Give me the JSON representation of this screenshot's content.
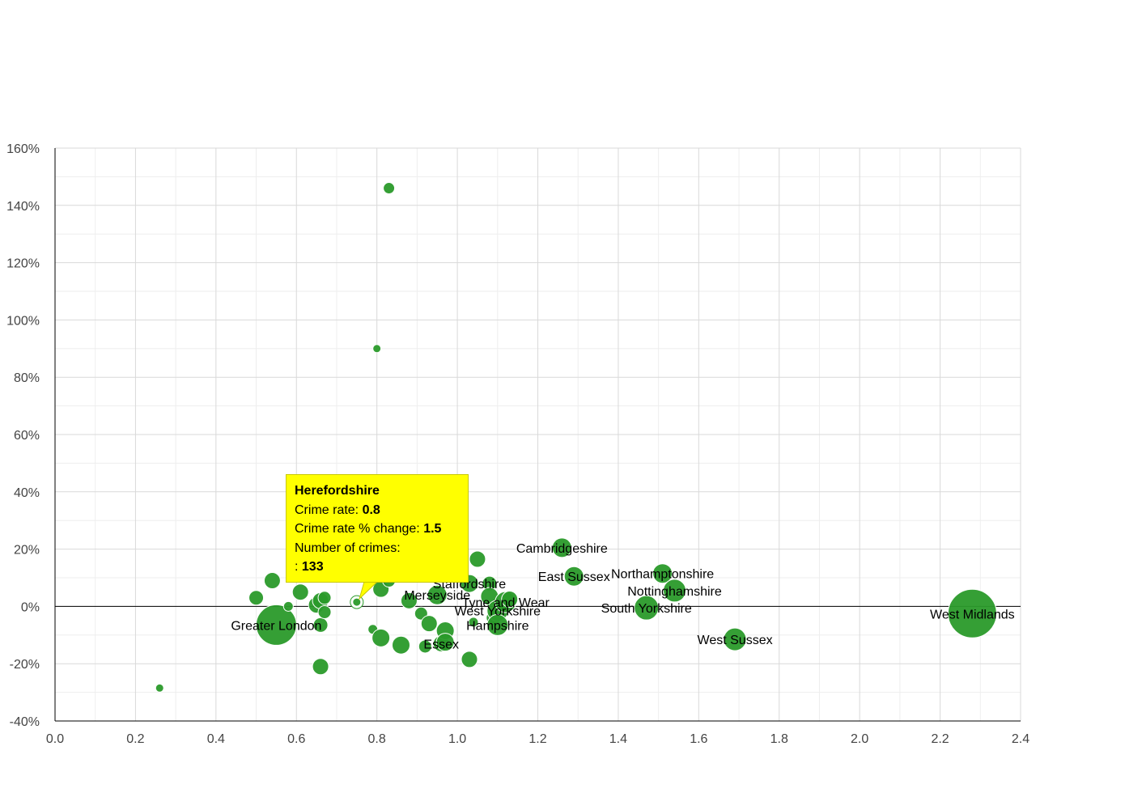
{
  "colors": {
    "bubble": "#2a9a2a",
    "bubble_stroke": "#ffffff",
    "grid": "#d9d9d9",
    "minor_grid": "#eeeeee",
    "tooltip_bg": "#ffff00",
    "axis": "#000000"
  },
  "chart_data": {
    "type": "scatter",
    "subtype": "bubble",
    "xlim": [
      0.0,
      2.4
    ],
    "ylim": [
      -40,
      160
    ],
    "x_ticks": [
      "0.0",
      "0.2",
      "0.4",
      "0.6",
      "0.8",
      "1.0",
      "1.2",
      "1.4",
      "1.6",
      "1.8",
      "2.0",
      "2.2",
      "2.4"
    ],
    "y_ticks": [
      "160%",
      "140%",
      "120%",
      "100%",
      "80%",
      "60%",
      "40%",
      "20%",
      "0%",
      "-20%",
      "-40%"
    ],
    "xlabel": "",
    "ylabel": "",
    "grid": true,
    "points": [
      {
        "x": 0.26,
        "y": -28.5,
        "size": 5
      },
      {
        "x": 0.5,
        "y": 3,
        "size": 9
      },
      {
        "x": 0.54,
        "y": 9,
        "size": 10
      },
      {
        "x": 0.55,
        "y": -6.5,
        "size": 25,
        "label": "Greater London"
      },
      {
        "x": 0.58,
        "y": 0,
        "size": 6
      },
      {
        "x": 0.61,
        "y": 5,
        "size": 10
      },
      {
        "x": 0.65,
        "y": 0.5,
        "size": 10
      },
      {
        "x": 0.66,
        "y": 2,
        "size": 10
      },
      {
        "x": 0.66,
        "y": -6.5,
        "size": 9
      },
      {
        "x": 0.66,
        "y": -21,
        "size": 10
      },
      {
        "x": 0.67,
        "y": 3,
        "size": 8
      },
      {
        "x": 0.67,
        "y": -2,
        "size": 8
      },
      {
        "x": 0.75,
        "y": 1.5,
        "size": 5,
        "label": "Herefordshire",
        "highlight": true
      },
      {
        "x": 0.79,
        "y": -8,
        "size": 6
      },
      {
        "x": 0.8,
        "y": 90,
        "size": 5
      },
      {
        "x": 0.81,
        "y": 6,
        "size": 10
      },
      {
        "x": 0.81,
        "y": -11,
        "size": 11
      },
      {
        "x": 0.83,
        "y": 146,
        "size": 7
      },
      {
        "x": 0.83,
        "y": 9,
        "size": 8
      },
      {
        "x": 0.86,
        "y": -13.5,
        "size": 11
      },
      {
        "x": 0.88,
        "y": 2,
        "size": 10
      },
      {
        "x": 0.91,
        "y": -2.5,
        "size": 8
      },
      {
        "x": 0.92,
        "y": -14,
        "size": 8
      },
      {
        "x": 0.93,
        "y": -6,
        "size": 10
      },
      {
        "x": 0.95,
        "y": 4,
        "size": 12,
        "label": "Merseyside"
      },
      {
        "x": 0.96,
        "y": -13,
        "size": 10,
        "label": "Essex"
      },
      {
        "x": 0.97,
        "y": -8.5,
        "size": 11
      },
      {
        "x": 0.97,
        "y": -12.5,
        "size": 11
      },
      {
        "x": 1.03,
        "y": 8,
        "size": 11,
        "label": "Staffordshire"
      },
      {
        "x": 1.03,
        "y": -18.5,
        "size": 10
      },
      {
        "x": 1.04,
        "y": -5.5,
        "size": 6
      },
      {
        "x": 1.05,
        "y": 16.5,
        "size": 10
      },
      {
        "x": 1.08,
        "y": 8,
        "size": 9
      },
      {
        "x": 1.08,
        "y": 3.5,
        "size": 11
      },
      {
        "x": 1.09,
        "y": -4,
        "size": 9
      },
      {
        "x": 1.1,
        "y": -1.5,
        "size": 13,
        "label": "West Yorkshire"
      },
      {
        "x": 1.1,
        "y": -6.5,
        "size": 13,
        "label": "Hampshire"
      },
      {
        "x": 1.12,
        "y": 1.5,
        "size": 13,
        "label": "Tyne and Wear"
      },
      {
        "x": 1.13,
        "y": 2.5,
        "size": 10
      },
      {
        "x": 1.26,
        "y": 20.5,
        "size": 12,
        "label": "Cambridgeshire"
      },
      {
        "x": 1.29,
        "y": 10.5,
        "size": 12,
        "label": "East Sussex"
      },
      {
        "x": 1.47,
        "y": -0.5,
        "size": 15,
        "label": "South Yorkshire"
      },
      {
        "x": 1.51,
        "y": 11.5,
        "size": 12,
        "label": "Northamptonshire"
      },
      {
        "x": 1.54,
        "y": 5.5,
        "size": 14,
        "label": "Nottinghamshire"
      },
      {
        "x": 1.69,
        "y": -11.5,
        "size": 14,
        "label": "West Sussex"
      },
      {
        "x": 2.28,
        "y": -2.5,
        "size": 30,
        "label": "West Midlands"
      }
    ]
  },
  "tooltip": {
    "title": "Herefordshire",
    "crime_rate_label": "Crime rate: ",
    "crime_rate_value": "0.8",
    "change_label": "Crime rate % change: ",
    "change_value": "1.5",
    "count_label": "Number of crimes:",
    "count_prefix": ": ",
    "count_value": "133"
  }
}
